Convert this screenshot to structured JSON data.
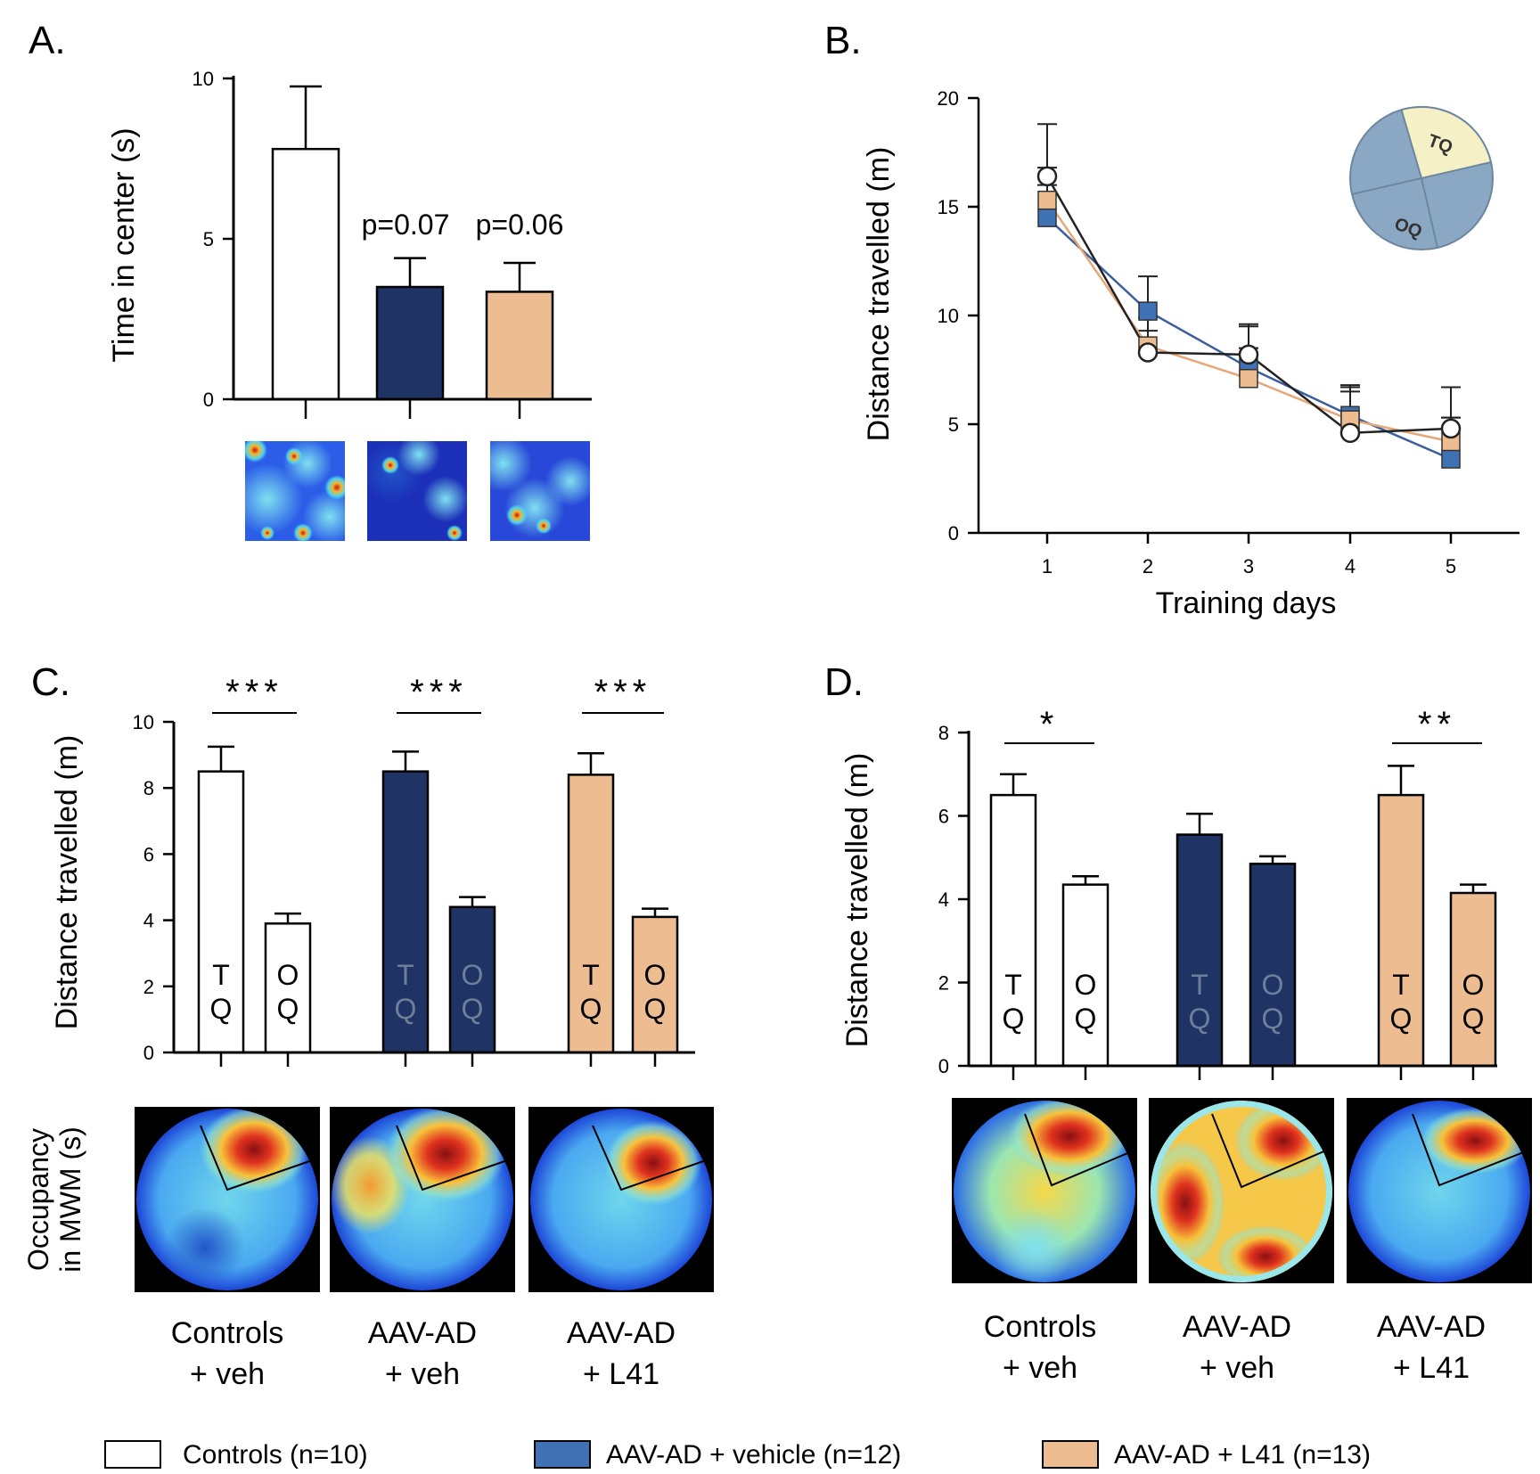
{
  "panels": {
    "A": {
      "letter": "A.",
      "chart_data": {
        "type": "bar",
        "ylabel": "Time in center (s)",
        "ylim": [
          0,
          10
        ],
        "yticks": [
          "0",
          "5",
          "10"
        ],
        "categories": [
          "Controls",
          "AAV-AD + vehicle",
          "AAV-AD + L41"
        ],
        "values": [
          7.8,
          3.5,
          3.35
        ],
        "errors": [
          1.95,
          0.9,
          0.9
        ],
        "colors": [
          "#ffffff",
          "#1f3364",
          "#edbc91"
        ],
        "annotations": [
          "",
          "p=0.07",
          "p=0.06"
        ]
      }
    },
    "B": {
      "letter": "B.",
      "chart_data": {
        "type": "line",
        "xlabel": "Training days",
        "ylabel": "Distance travelled (m)",
        "ylim": [
          0,
          20
        ],
        "yticks": [
          "0",
          "5",
          "10",
          "15",
          "20"
        ],
        "x": [
          "1",
          "2",
          "3",
          "4",
          "5"
        ],
        "series": [
          {
            "name": "Controls (n=10)",
            "values": [
              16.4,
              8.3,
              8.2,
              4.6,
              4.8
            ],
            "errors": [
              2.4,
              1.0,
              1.4,
              2.1,
              1.9
            ],
            "color": "#ffffff",
            "line": "#222222",
            "marker": "circle"
          },
          {
            "name": "AAV-AD + vehicle (n=12)",
            "values": [
              14.5,
              10.2,
              7.6,
              5.4,
              3.4
            ],
            "errors": [
              1.5,
              1.6,
              1.9,
              1.4,
              1.9
            ],
            "color": "#3f72b4",
            "line": "#3a5f9e",
            "marker": "square"
          },
          {
            "name": "AAV-AD + L41 (n=13)",
            "values": [
              15.3,
              8.6,
              7.1,
              5.2,
              4.2
            ],
            "errors": [
              1.5,
              1.3,
              1.4,
              1.3,
              1.1
            ],
            "color": "#edbc91",
            "line": "#e6a675",
            "marker": "square"
          }
        ],
        "inset": {
          "target_label": "TQ",
          "other_label": "OQ"
        }
      }
    },
    "C": {
      "letter": "C.",
      "chart_data": {
        "type": "bar",
        "ylabel": "Distance travelled (m)",
        "ylim": [
          0,
          10
        ],
        "yticks": [
          "0",
          "2",
          "4",
          "6",
          "8",
          "10"
        ],
        "bars": [
          {
            "group": "Controls + veh",
            "quadrant": "TQ",
            "value": 8.5,
            "error": 0.75,
            "color": "#ffffff"
          },
          {
            "group": "Controls + veh",
            "quadrant": "OQ",
            "value": 3.9,
            "error": 0.3,
            "color": "#ffffff"
          },
          {
            "group": "AAV-AD + veh",
            "quadrant": "TQ",
            "value": 8.5,
            "error": 0.6,
            "color": "#1f3364"
          },
          {
            "group": "AAV-AD + veh",
            "quadrant": "OQ",
            "value": 4.4,
            "error": 0.3,
            "color": "#1f3364"
          },
          {
            "group": "AAV-AD + L41",
            "quadrant": "TQ",
            "value": 8.4,
            "error": 0.65,
            "color": "#edbc91"
          },
          {
            "group": "AAV-AD + L41",
            "quadrant": "OQ",
            "value": 4.1,
            "error": 0.25,
            "color": "#edbc91"
          }
        ],
        "bar_letters": [
          [
            "T",
            "Q"
          ],
          [
            "O",
            "Q"
          ],
          [
            "T",
            "Q"
          ],
          [
            "O",
            "Q"
          ],
          [
            "T",
            "Q"
          ],
          [
            "O",
            "Q"
          ]
        ],
        "significance": [
          "***",
          "***",
          "***"
        ]
      }
    },
    "D": {
      "letter": "D.",
      "chart_data": {
        "type": "bar",
        "ylabel": "Distance travelled (m)",
        "ylim": [
          0,
          8
        ],
        "yticks": [
          "0",
          "2",
          "4",
          "6",
          "8"
        ],
        "bars": [
          {
            "group": "Controls + veh",
            "quadrant": "TQ",
            "value": 6.5,
            "error": 0.5,
            "color": "#ffffff"
          },
          {
            "group": "Controls + veh",
            "quadrant": "OQ",
            "value": 4.35,
            "error": 0.2,
            "color": "#ffffff"
          },
          {
            "group": "AAV-AD + veh",
            "quadrant": "TQ",
            "value": 5.55,
            "error": 0.5,
            "color": "#1f3364"
          },
          {
            "group": "AAV-AD + veh",
            "quadrant": "OQ",
            "value": 4.85,
            "error": 0.18,
            "color": "#1f3364"
          },
          {
            "group": "AAV-AD + L41",
            "quadrant": "TQ",
            "value": 6.5,
            "error": 0.7,
            "color": "#edbc91"
          },
          {
            "group": "AAV-AD + L41",
            "quadrant": "OQ",
            "value": 4.15,
            "error": 0.2,
            "color": "#edbc91"
          }
        ],
        "bar_letters": [
          [
            "T",
            "Q"
          ],
          [
            "O",
            "Q"
          ],
          [
            "T",
            "Q"
          ],
          [
            "O",
            "Q"
          ],
          [
            "T",
            "Q"
          ],
          [
            "O",
            "Q"
          ]
        ],
        "significance": [
          "*",
          "",
          "**"
        ]
      }
    }
  },
  "heatmap_label": [
    "Occupancy",
    "in MWM (s)"
  ],
  "group_labels": [
    [
      "Controls",
      "+ veh"
    ],
    [
      "AAV-AD",
      "+ veh"
    ],
    [
      "AAV-AD",
      "+ L41"
    ]
  ],
  "legend": [
    {
      "label": "Controls (n=10)",
      "color": "#ffffff"
    },
    {
      "label": "AAV-AD + vehicle (n=12)",
      "color": "#3f72b4"
    },
    {
      "label": "AAV-AD + L41 (n=13)",
      "color": "#edbc91"
    }
  ],
  "colors": {
    "axis": "#000000",
    "navy": "#1f3364",
    "blue": "#3f72b4",
    "peach": "#edbc91",
    "inset_fill": "#8aa8c4",
    "inset_target": "#f6f0c6"
  }
}
